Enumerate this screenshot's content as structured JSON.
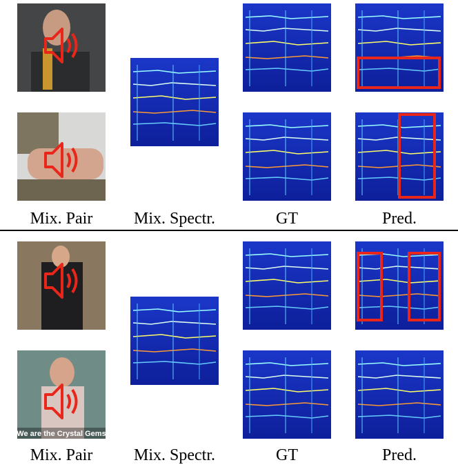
{
  "panels": [
    {
      "labels": [
        "Mix. Pair",
        "Mix. Spectr.",
        "GT",
        "Pred."
      ]
    },
    {
      "labels": [
        "Mix. Pair",
        "Mix. Spectr.",
        "GT",
        "Pred."
      ],
      "caption": "We are the Crystal Gems"
    }
  ]
}
